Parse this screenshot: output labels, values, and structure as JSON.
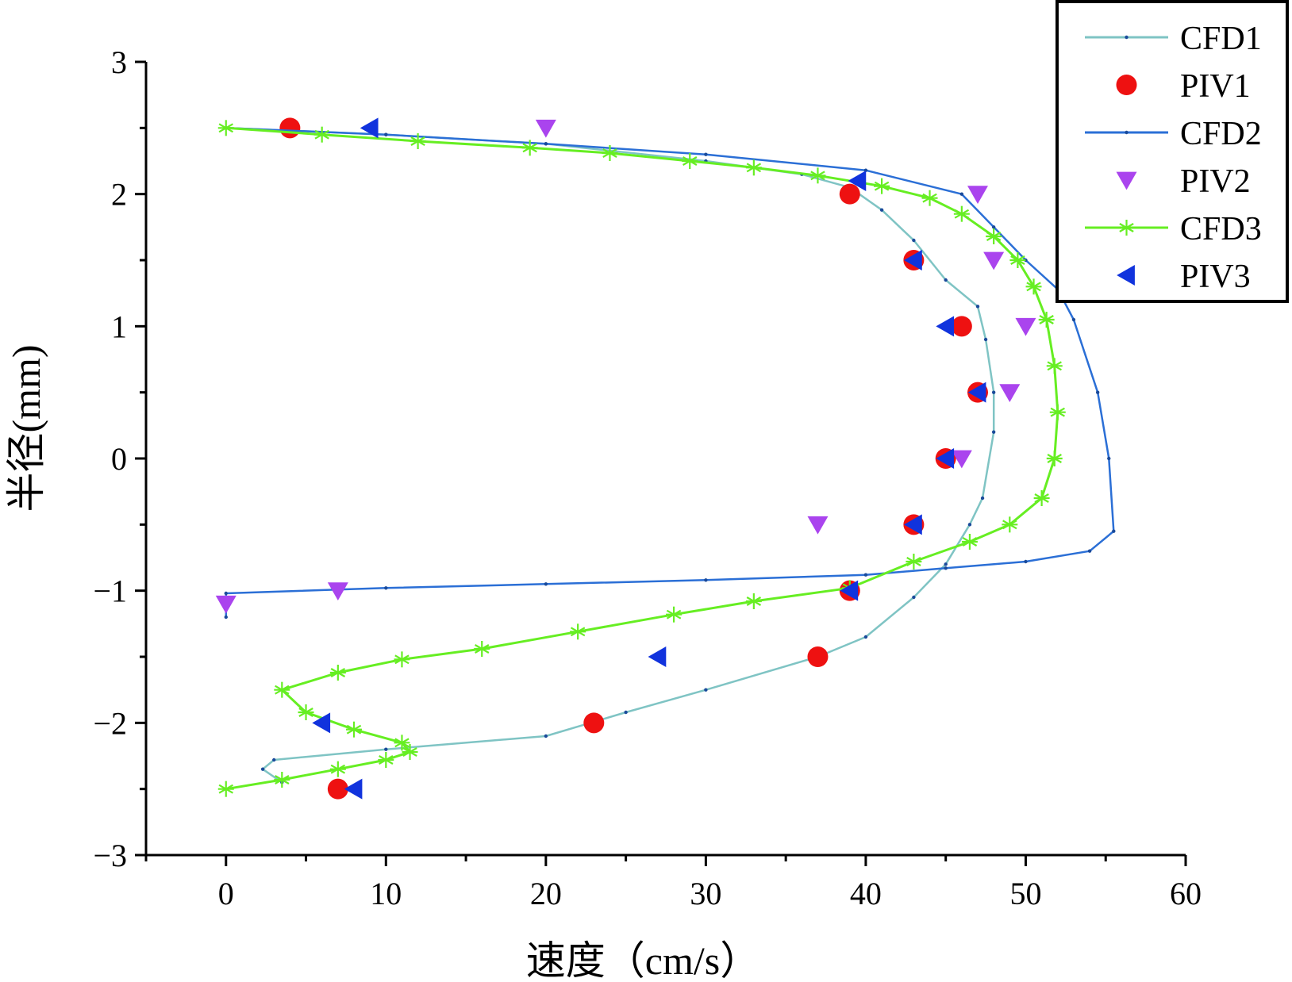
{
  "chart_data": {
    "type": "line",
    "xlabel": "速度（cm/s）",
    "ylabel": "半径(mm)",
    "xlim": [
      -5,
      60
    ],
    "ylim": [
      -3,
      3
    ],
    "x_ticks": [
      0,
      10,
      20,
      30,
      40,
      50,
      60
    ],
    "y_ticks": [
      -3,
      -2,
      -1,
      0,
      1,
      2,
      3
    ],
    "x_tick_labels": [
      "0",
      "10",
      "20",
      "30",
      "40",
      "50",
      "60"
    ],
    "y_tick_labels": [
      "−3",
      "−2",
      "−1",
      "0",
      "1",
      "2",
      "3"
    ],
    "grid": false,
    "legend_position": "top-right",
    "series": [
      {
        "name": "CFD1",
        "kind": "line",
        "marker": "dot",
        "color": "#7fc4c4",
        "points": [
          [
            0,
            2.5
          ],
          [
            10,
            2.45
          ],
          [
            20,
            2.38
          ],
          [
            30,
            2.25
          ],
          [
            36,
            2.15
          ],
          [
            39,
            2.05
          ],
          [
            41,
            1.88
          ],
          [
            43,
            1.65
          ],
          [
            45,
            1.35
          ],
          [
            47,
            1.15
          ],
          [
            47.5,
            0.9
          ],
          [
            48,
            0.5
          ],
          [
            48,
            0.2
          ],
          [
            47.3,
            -0.3
          ],
          [
            46.5,
            -0.5
          ],
          [
            45,
            -0.8
          ],
          [
            43,
            -1.05
          ],
          [
            40,
            -1.35
          ],
          [
            37,
            -1.5
          ],
          [
            30,
            -1.75
          ],
          [
            25,
            -1.92
          ],
          [
            20,
            -2.1
          ],
          [
            10,
            -2.2
          ],
          [
            3,
            -2.28
          ],
          [
            2.3,
            -2.35
          ],
          [
            3.5,
            -2.45
          ]
        ]
      },
      {
        "name": "PIV1",
        "kind": "scatter",
        "marker": "circle",
        "color": "#ee1111",
        "points": [
          [
            4,
            2.5
          ],
          [
            39,
            2
          ],
          [
            43,
            1.5
          ],
          [
            46,
            1
          ],
          [
            47,
            0.5
          ],
          [
            45,
            0
          ],
          [
            43,
            -0.5
          ],
          [
            39,
            -1
          ],
          [
            37,
            -1.5
          ],
          [
            23,
            -2
          ],
          [
            7,
            -2.5
          ]
        ]
      },
      {
        "name": "CFD2",
        "kind": "line",
        "marker": "dot",
        "color": "#2b6fd6",
        "points": [
          [
            0,
            2.5
          ],
          [
            10,
            2.45
          ],
          [
            20,
            2.38
          ],
          [
            30,
            2.3
          ],
          [
            40,
            2.18
          ],
          [
            46,
            2
          ],
          [
            48,
            1.75
          ],
          [
            50,
            1.5
          ],
          [
            52,
            1.28
          ],
          [
            53,
            1.05
          ],
          [
            54.5,
            0.5
          ],
          [
            55.2,
            0
          ],
          [
            55.5,
            -0.55
          ],
          [
            54,
            -0.7
          ],
          [
            50,
            -0.78
          ],
          [
            45,
            -0.83
          ],
          [
            40,
            -0.88
          ],
          [
            30,
            -0.92
          ],
          [
            20,
            -0.95
          ],
          [
            10,
            -0.98
          ],
          [
            0,
            -1.02
          ],
          [
            0,
            -1.2
          ]
        ]
      },
      {
        "name": "PIV2",
        "kind": "scatter",
        "marker": "triangle-down",
        "color": "#aa44ee",
        "points": [
          [
            20,
            2.5
          ],
          [
            47,
            2
          ],
          [
            48,
            1.5
          ],
          [
            50,
            1
          ],
          [
            49,
            0.5
          ],
          [
            46,
            0
          ],
          [
            37,
            -0.5
          ],
          [
            7,
            -1
          ],
          [
            0,
            -1.1
          ]
        ]
      },
      {
        "name": "CFD3",
        "kind": "line",
        "marker": "asterisk",
        "color": "#66ee22",
        "points": [
          [
            0,
            2.5
          ],
          [
            6,
            2.45
          ],
          [
            12,
            2.4
          ],
          [
            19,
            2.35
          ],
          [
            24,
            2.31
          ],
          [
            29,
            2.25
          ],
          [
            33,
            2.2
          ],
          [
            37,
            2.14
          ],
          [
            41,
            2.06
          ],
          [
            44,
            1.97
          ],
          [
            46,
            1.85
          ],
          [
            48,
            1.68
          ],
          [
            49.5,
            1.5
          ],
          [
            50.5,
            1.3
          ],
          [
            51.3,
            1.05
          ],
          [
            51.8,
            0.7
          ],
          [
            52,
            0.35
          ],
          [
            51.8,
            0
          ],
          [
            51,
            -0.3
          ],
          [
            49,
            -0.5
          ],
          [
            46.5,
            -0.63
          ],
          [
            43,
            -0.78
          ],
          [
            39,
            -0.98
          ],
          [
            33,
            -1.08
          ],
          [
            28,
            -1.18
          ],
          [
            22,
            -1.31
          ],
          [
            16,
            -1.44
          ],
          [
            11,
            -1.52
          ],
          [
            7,
            -1.62
          ],
          [
            3.5,
            -1.75
          ],
          [
            5,
            -1.92
          ],
          [
            8,
            -2.05
          ],
          [
            11,
            -2.15
          ],
          [
            11.5,
            -2.22
          ],
          [
            10,
            -2.28
          ],
          [
            7,
            -2.35
          ],
          [
            3.5,
            -2.43
          ],
          [
            0,
            -2.5
          ]
        ]
      },
      {
        "name": "PIV3",
        "kind": "scatter",
        "marker": "triangle-left",
        "color": "#1133dd",
        "points": [
          [
            9,
            2.5
          ],
          [
            39.5,
            2.1
          ],
          [
            43,
            1.5
          ],
          [
            45,
            1
          ],
          [
            47,
            0.5
          ],
          [
            45,
            0
          ],
          [
            43,
            -0.5
          ],
          [
            39,
            -1
          ],
          [
            27,
            -1.5
          ],
          [
            6,
            -2
          ],
          [
            8,
            -2.5
          ]
        ]
      }
    ]
  }
}
